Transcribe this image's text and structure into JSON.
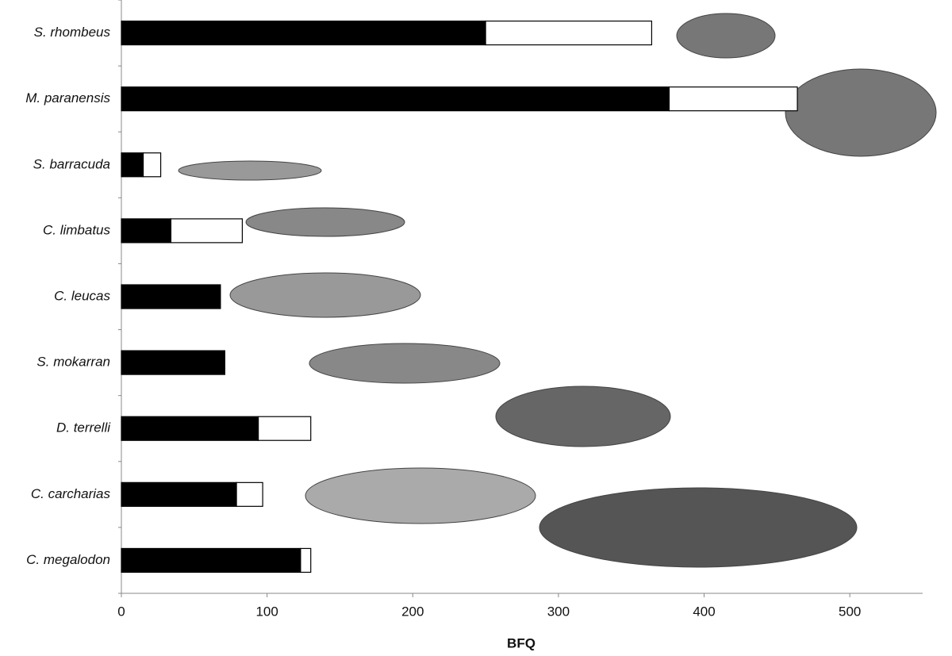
{
  "chart_data": {
    "type": "stacked-barh",
    "categories": [
      "S. rhombeus",
      "M. paranensis",
      "S. barracuda",
      "C. limbatus",
      "C. leucas",
      "S. mokarran",
      "D. terrelli",
      "C. carcharias",
      "C. megalodon"
    ],
    "series": [
      {
        "color": "#000000",
        "values": [
          250,
          376,
          15,
          34,
          68,
          71,
          94,
          79,
          123
        ]
      },
      {
        "color": "#ffffff",
        "values": [
          114,
          88,
          12,
          49,
          null,
          null,
          36,
          18,
          7
        ]
      }
    ],
    "xlabel": "BFQ",
    "xlim": [
      0,
      550
    ],
    "xticks": [
      0,
      100,
      200,
      300,
      400,
      500
    ]
  }
}
